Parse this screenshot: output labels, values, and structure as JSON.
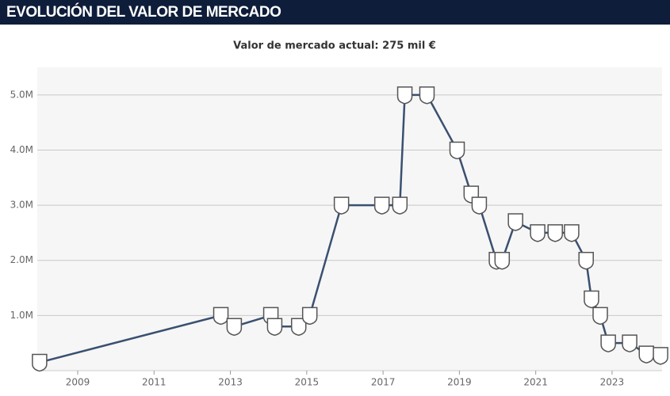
{
  "header": {
    "title": "EVOLUCIÓN DEL VALOR DE MERCADO"
  },
  "chart_data": {
    "type": "line",
    "subtitle": "Valor de mercado actual: 275 mil €",
    "x": [
      2008.0,
      2012.75,
      2013.1,
      2014.06,
      2014.16,
      2014.79,
      2015.08,
      2015.91,
      2016.97,
      2017.44,
      2017.57,
      2018.15,
      2018.94,
      2019.31,
      2019.52,
      2019.97,
      2020.12,
      2020.47,
      2021.05,
      2021.51,
      2021.94,
      2022.32,
      2022.46,
      2022.69,
      2022.9,
      2023.46,
      2023.9,
      2024.27
    ],
    "values": [
      0.15,
      1.0,
      0.8,
      1.0,
      0.8,
      0.8,
      1.0,
      3.0,
      3.0,
      3.0,
      5.0,
      5.0,
      4.0,
      3.2,
      3.0,
      2.0,
      2.0,
      2.7,
      2.5,
      2.5,
      2.5,
      2.0,
      1.3,
      1.0,
      0.5,
      0.5,
      0.3,
      0.275
    ],
    "color": "#3a5070",
    "xlim": [
      2007.94,
      2024.31
    ],
    "xticks": [
      2009,
      2011,
      2013,
      2015,
      2017,
      2019,
      2021,
      2023
    ],
    "ylim": [
      0,
      5.5
    ],
    "yticks": [
      {
        "value": 1,
        "label": "1.0M"
      },
      {
        "value": 2,
        "label": "2.0M"
      },
      {
        "value": 3,
        "label": "3.0M"
      },
      {
        "value": 4,
        "label": "4.0M"
      },
      {
        "value": 5,
        "label": "5.0M"
      }
    ],
    "grid": true
  }
}
